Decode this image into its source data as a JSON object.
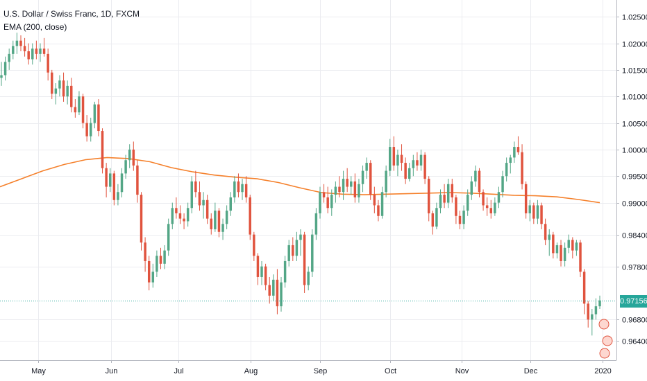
{
  "chart_data": {
    "type": "candlestick",
    "title": "U.S. Dollar / Swiss Franc, 1D, FXCM",
    "indicator": "EMA (200, close)",
    "last_price": "0.97156",
    "y_ticks": [
      "1.02500",
      "1.02000",
      "1.01500",
      "1.01000",
      "1.00500",
      "1.00000",
      "0.99500",
      "0.99000",
      "0.98400",
      "0.97800",
      "0.96800",
      "0.96400"
    ],
    "x_ticks": [
      "May",
      "Jun",
      "Jul",
      "Aug",
      "Sep",
      "Oct",
      "Nov",
      "Dec",
      "2020"
    ],
    "ylim": [
      0.961,
      1.0275
    ],
    "colors": {
      "up": "#53a686",
      "down": "#e0533e",
      "ema": "#f5802b",
      "grid": "#ebecf0",
      "last": "#26a69a"
    },
    "candles": [
      [
        1.0135,
        1.0165,
        1.012,
        1.014
      ],
      [
        1.014,
        1.0175,
        1.013,
        1.0165
      ],
      [
        1.0165,
        1.019,
        1.015,
        1.018
      ],
      [
        1.018,
        1.0205,
        1.017,
        1.0195
      ],
      [
        1.0195,
        1.022,
        1.018,
        1.0205
      ],
      [
        1.0205,
        1.0215,
        1.0185,
        1.0195
      ],
      [
        1.0195,
        1.021,
        1.0175,
        1.0185
      ],
      [
        1.0185,
        1.02,
        1.016,
        1.017
      ],
      [
        1.017,
        1.02,
        1.016,
        1.019
      ],
      [
        1.019,
        1.0205,
        1.017,
        1.018
      ],
      [
        1.018,
        1.02,
        1.0165,
        1.019
      ],
      [
        1.019,
        1.021,
        1.0175,
        1.018
      ],
      [
        1.018,
        1.019,
        1.013,
        1.0145
      ],
      [
        1.0145,
        1.015,
        1.0095,
        1.0105
      ],
      [
        1.0105,
        1.0125,
        1.0085,
        1.0115
      ],
      [
        1.0115,
        1.014,
        1.01,
        1.013
      ],
      [
        1.013,
        1.0145,
        1.009,
        1.01
      ],
      [
        1.01,
        1.013,
        1.0085,
        1.012
      ],
      [
        1.012,
        1.0135,
        1.007,
        1.008
      ],
      [
        1.008,
        1.0095,
        1.006,
        1.007
      ],
      [
        1.007,
        1.011,
        1.0065,
        1.01
      ],
      [
        1.01,
        1.0105,
        1.004,
        1.005
      ],
      [
        1.005,
        1.0065,
        1.0015,
        1.0025
      ],
      [
        1.0025,
        1.006,
        1.0015,
        1.005
      ],
      [
        1.005,
        1.009,
        1.004,
        1.0085
      ],
      [
        1.0085,
        1.0095,
        1.0025,
        1.0035
      ],
      [
        1.0035,
        1.004,
        0.9955,
        0.9965
      ],
      [
        0.9965,
        0.9975,
        0.991,
        0.993
      ],
      [
        0.993,
        0.9965,
        0.992,
        0.9955
      ],
      [
        0.9955,
        0.996,
        0.9895,
        0.9905
      ],
      [
        0.9905,
        0.9935,
        0.9895,
        0.992
      ],
      [
        0.992,
        0.9965,
        0.991,
        0.9955
      ],
      [
        0.9955,
        0.999,
        0.9945,
        0.998
      ],
      [
        0.998,
        1.001,
        0.9965,
        1.0
      ],
      [
        1.0,
        1.0015,
        0.996,
        0.997
      ],
      [
        0.997,
        0.998,
        0.99,
        0.9915
      ],
      [
        0.9915,
        0.992,
        0.981,
        0.9825
      ],
      [
        0.9825,
        0.9835,
        0.977,
        0.979
      ],
      [
        0.979,
        0.98,
        0.9735,
        0.975
      ],
      [
        0.975,
        0.9785,
        0.974,
        0.977
      ],
      [
        0.977,
        0.981,
        0.976,
        0.98
      ],
      [
        0.98,
        0.9815,
        0.9775,
        0.9785
      ],
      [
        0.9785,
        0.982,
        0.9775,
        0.981
      ],
      [
        0.981,
        0.987,
        0.98,
        0.986
      ],
      [
        0.986,
        0.99,
        0.985,
        0.989
      ],
      [
        0.989,
        0.991,
        0.987,
        0.988
      ],
      [
        0.988,
        0.9895,
        0.986,
        0.987
      ],
      [
        0.987,
        0.988,
        0.985,
        0.9865
      ],
      [
        0.9865,
        0.99,
        0.9855,
        0.989
      ],
      [
        0.989,
        0.995,
        0.988,
        0.994
      ],
      [
        0.994,
        0.996,
        0.991,
        0.992
      ],
      [
        0.992,
        0.994,
        0.9885,
        0.9895
      ],
      [
        0.9895,
        0.992,
        0.987,
        0.9905
      ],
      [
        0.9905,
        0.9915,
        0.986,
        0.987
      ],
      [
        0.987,
        0.988,
        0.984,
        0.985
      ],
      [
        0.985,
        0.99,
        0.9845,
        0.9885
      ],
      [
        0.9885,
        0.989,
        0.9835,
        0.9845
      ],
      [
        0.9845,
        0.987,
        0.983,
        0.986
      ],
      [
        0.986,
        0.9895,
        0.985,
        0.9885
      ],
      [
        0.9885,
        0.992,
        0.9875,
        0.991
      ],
      [
        0.991,
        0.995,
        0.99,
        0.994
      ],
      [
        0.994,
        0.9955,
        0.991,
        0.992
      ],
      [
        0.992,
        0.9945,
        0.9905,
        0.9935
      ],
      [
        0.9935,
        0.995,
        0.99,
        0.991
      ],
      [
        0.991,
        0.9915,
        0.983,
        0.984
      ],
      [
        0.984,
        0.9845,
        0.979,
        0.98
      ],
      [
        0.98,
        0.9805,
        0.9745,
        0.976
      ],
      [
        0.976,
        0.979,
        0.9745,
        0.978
      ],
      [
        0.978,
        0.9785,
        0.9735,
        0.9745
      ],
      [
        0.9745,
        0.976,
        0.971,
        0.9725
      ],
      [
        0.9725,
        0.9765,
        0.9715,
        0.9755
      ],
      [
        0.9755,
        0.9775,
        0.969,
        0.9705
      ],
      [
        0.9705,
        0.976,
        0.9695,
        0.975
      ],
      [
        0.975,
        0.98,
        0.974,
        0.979
      ],
      [
        0.979,
        0.983,
        0.978,
        0.982
      ],
      [
        0.982,
        0.9835,
        0.979,
        0.98
      ],
      [
        0.98,
        0.9845,
        0.979,
        0.983
      ],
      [
        0.983,
        0.985,
        0.98,
        0.984
      ],
      [
        0.984,
        0.9845,
        0.973,
        0.9745
      ],
      [
        0.9745,
        0.978,
        0.9735,
        0.977
      ],
      [
        0.977,
        0.985,
        0.976,
        0.984
      ],
      [
        0.984,
        0.989,
        0.983,
        0.988
      ],
      [
        0.988,
        0.993,
        0.987,
        0.992
      ],
      [
        0.992,
        0.9935,
        0.99,
        0.991
      ],
      [
        0.991,
        0.993,
        0.988,
        0.989
      ],
      [
        0.989,
        0.9925,
        0.9875,
        0.9915
      ],
      [
        0.9915,
        0.994,
        0.99,
        0.993
      ],
      [
        0.993,
        0.995,
        0.991,
        0.992
      ],
      [
        0.992,
        0.996,
        0.9905,
        0.9945
      ],
      [
        0.9945,
        0.9965,
        0.992,
        0.993
      ],
      [
        0.993,
        0.995,
        0.9915,
        0.994
      ],
      [
        0.994,
        0.9955,
        0.99,
        0.991
      ],
      [
        0.991,
        0.9945,
        0.99,
        0.9935
      ],
      [
        0.9935,
        0.997,
        0.992,
        0.996
      ],
      [
        0.996,
        0.9985,
        0.9945,
        0.9975
      ],
      [
        0.9975,
        0.998,
        0.9905,
        0.9915
      ],
      [
        0.9915,
        0.993,
        0.988,
        0.9895
      ],
      [
        0.9895,
        0.9905,
        0.9865,
        0.9875
      ],
      [
        0.9875,
        0.993,
        0.987,
        0.992
      ],
      [
        0.992,
        0.997,
        0.991,
        0.996
      ],
      [
        0.996,
        1.002,
        0.995,
        1.0005
      ],
      [
        1.0005,
        1.0025,
        0.996,
        0.997
      ],
      [
        0.997,
        1.0,
        0.995,
        0.999
      ],
      [
        0.999,
        1.001,
        0.996,
        0.9975
      ],
      [
        0.9975,
        0.9985,
        0.9935,
        0.9945
      ],
      [
        0.9945,
        0.9975,
        0.994,
        0.9965
      ],
      [
        0.9965,
        0.999,
        0.995,
        0.998
      ],
      [
        0.998,
        0.9995,
        0.996,
        0.997
      ],
      [
        0.997,
        1.0,
        0.996,
        0.999
      ],
      [
        0.999,
        0.9995,
        0.9935,
        0.9945
      ],
      [
        0.9945,
        0.995,
        0.9865,
        0.988
      ],
      [
        0.988,
        0.9885,
        0.984,
        0.9855
      ],
      [
        0.9855,
        0.99,
        0.985,
        0.989
      ],
      [
        0.989,
        0.9925,
        0.988,
        0.9915
      ],
      [
        0.9915,
        0.9935,
        0.989,
        0.99
      ],
      [
        0.99,
        0.9945,
        0.989,
        0.9935
      ],
      [
        0.9935,
        0.9945,
        0.99,
        0.991
      ],
      [
        0.991,
        0.9915,
        0.986,
        0.9875
      ],
      [
        0.9875,
        0.9885,
        0.985,
        0.986
      ],
      [
        0.986,
        0.9895,
        0.985,
        0.9885
      ],
      [
        0.9885,
        0.9925,
        0.9875,
        0.9915
      ],
      [
        0.9915,
        0.995,
        0.9905,
        0.994
      ],
      [
        0.994,
        0.997,
        0.993,
        0.996
      ],
      [
        0.996,
        0.9965,
        0.991,
        0.992
      ],
      [
        0.992,
        0.9925,
        0.9885,
        0.9895
      ],
      [
        0.9895,
        0.991,
        0.9875,
        0.989
      ],
      [
        0.989,
        0.9905,
        0.987,
        0.988
      ],
      [
        0.988,
        0.991,
        0.9875,
        0.99
      ],
      [
        0.99,
        0.993,
        0.989,
        0.992
      ],
      [
        0.992,
        0.996,
        0.991,
        0.995
      ],
      [
        0.995,
        0.9985,
        0.994,
        0.9975
      ],
      [
        0.9975,
        0.999,
        0.9955,
        0.9985
      ],
      [
        0.9985,
        1.0015,
        0.9975,
        1.0005
      ],
      [
        1.0005,
        1.0025,
        0.999,
        0.9995
      ],
      [
        0.9995,
        1.001,
        0.9925,
        0.9935
      ],
      [
        0.9935,
        0.994,
        0.987,
        0.988
      ],
      [
        0.988,
        0.9905,
        0.9865,
        0.9895
      ],
      [
        0.9895,
        0.99,
        0.986,
        0.987
      ],
      [
        0.987,
        0.9905,
        0.986,
        0.9895
      ],
      [
        0.9895,
        0.99,
        0.985,
        0.986
      ],
      [
        0.986,
        0.987,
        0.982,
        0.983
      ],
      [
        0.983,
        0.985,
        0.98,
        0.984
      ],
      [
        0.984,
        0.9845,
        0.9795,
        0.9805
      ],
      [
        0.9805,
        0.9825,
        0.9795,
        0.982
      ],
      [
        0.982,
        0.983,
        0.978,
        0.979
      ],
      [
        0.979,
        0.9825,
        0.978,
        0.9815
      ],
      [
        0.9815,
        0.984,
        0.9805,
        0.983
      ],
      [
        0.983,
        0.9835,
        0.9795,
        0.981
      ],
      [
        0.981,
        0.983,
        0.98,
        0.9825
      ],
      [
        0.9825,
        0.983,
        0.976,
        0.977
      ],
      [
        0.977,
        0.9775,
        0.969,
        0.971
      ],
      [
        0.971,
        0.9715,
        0.9665,
        0.968
      ],
      [
        0.968,
        0.97,
        0.965,
        0.969
      ],
      [
        0.969,
        0.972,
        0.968,
        0.9705
      ],
      [
        0.9705,
        0.9725,
        0.97,
        0.9716
      ]
    ],
    "ema": [
      0.993,
      0.9945,
      0.996,
      0.9972,
      0.9981,
      0.9985,
      0.9983,
      0.9977,
      0.9966,
      0.9958,
      0.9952,
      0.9948,
      0.9945,
      0.9938,
      0.9928,
      0.9919,
      0.9916,
      0.9915,
      0.9916,
      0.9917,
      0.9918,
      0.9919,
      0.9918,
      0.9916,
      0.9914,
      0.9913,
      0.9911,
      0.9906,
      0.99
    ]
  },
  "ui": {
    "legend_title": "U.S. Dollar / Swiss Franc, 1D, FXCM",
    "legend_indicator": "EMA (200, close)"
  }
}
